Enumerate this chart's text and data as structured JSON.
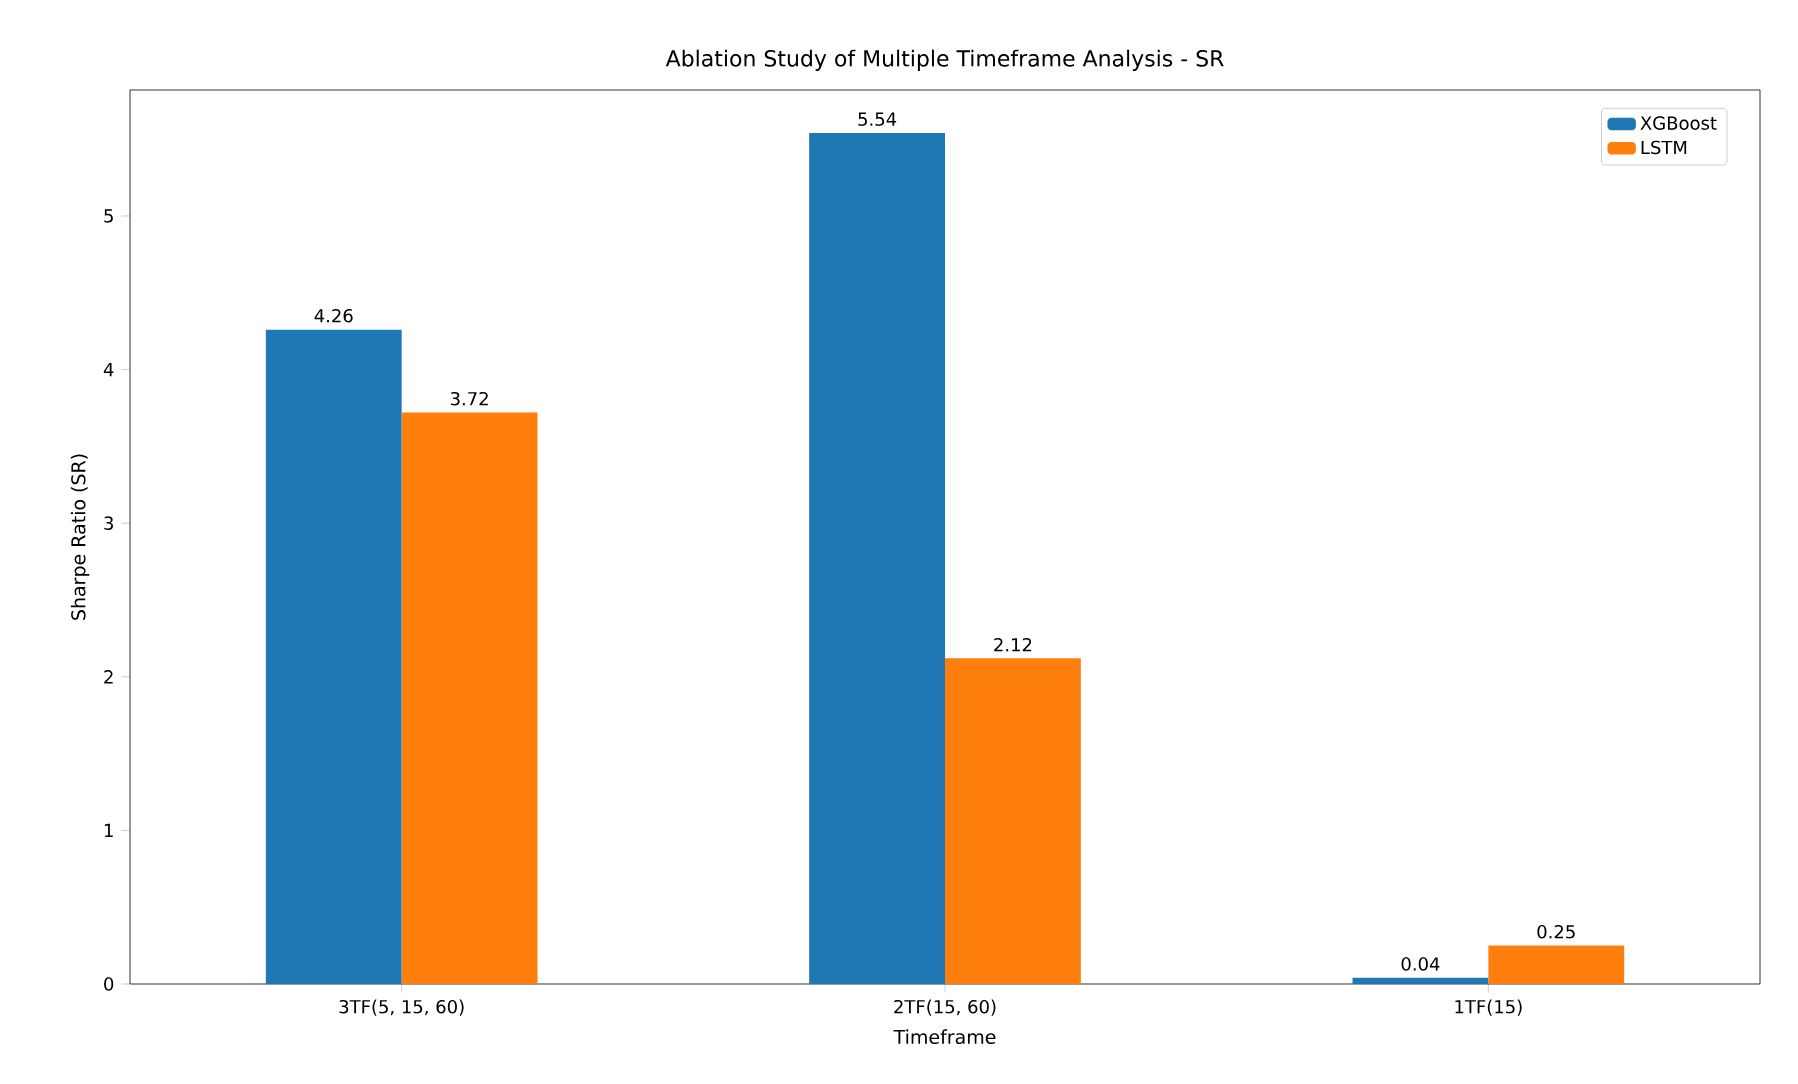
{
  "chart_data": {
    "type": "bar",
    "title": "Ablation Study of Multiple Timeframe Analysis - SR",
    "xlabel": "Timeframe",
    "ylabel": "Sharpe Ratio (SR)",
    "categories": [
      "3TF(5, 15, 60)",
      "2TF(15, 60)",
      "1TF(15)"
    ],
    "series": [
      {
        "name": "XGBoost",
        "color": "#1f77b4",
        "values": [
          4.26,
          5.54,
          0.04
        ]
      },
      {
        "name": "LSTM",
        "color": "#ff7f0e",
        "values": [
          3.72,
          2.12,
          0.25
        ]
      }
    ],
    "ylim": [
      0,
      5.82
    ],
    "yticks": [
      0,
      1,
      2,
      3,
      4,
      5
    ],
    "data_labels": true,
    "legend": "top right",
    "grid": false
  }
}
